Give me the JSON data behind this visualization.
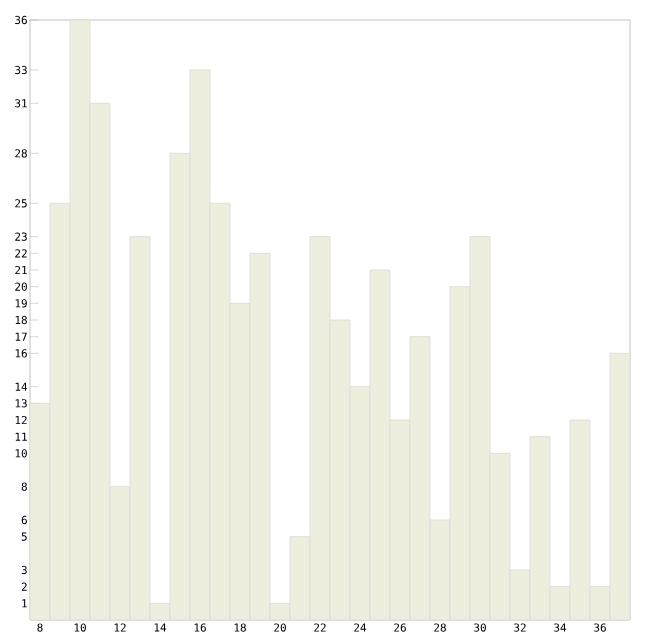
{
  "chart_data": {
    "type": "bar",
    "x": [
      8,
      9,
      10,
      11,
      12,
      13,
      14,
      15,
      16,
      17,
      18,
      19,
      20,
      21,
      22,
      23,
      24,
      25,
      26,
      27,
      28,
      29,
      30,
      31,
      32,
      33,
      34,
      35,
      36,
      37
    ],
    "values": [
      13,
      25,
      36,
      31,
      8,
      23,
      1,
      28,
      33,
      25,
      19,
      22,
      1,
      5,
      23,
      18,
      14,
      21,
      12,
      17,
      6,
      20,
      23,
      10,
      3,
      11,
      2,
      12,
      2,
      16
    ],
    "color": "#eeeedf",
    "xlim": [
      7.5,
      37.5
    ],
    "xticks": [
      8,
      10,
      12,
      14,
      16,
      18,
      20,
      22,
      24,
      26,
      28,
      30,
      32,
      34,
      36
    ],
    "ylim": [
      0,
      36
    ],
    "yticks": [
      1,
      2,
      3,
      5,
      6,
      8,
      10,
      11,
      12,
      13,
      14,
      16,
      17,
      18,
      19,
      20,
      21,
      22,
      23,
      25,
      28,
      31,
      33,
      36
    ]
  }
}
